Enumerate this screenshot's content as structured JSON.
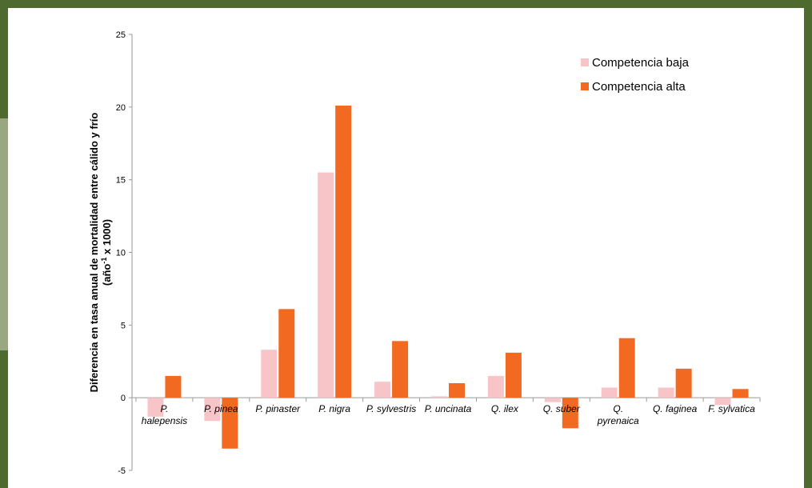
{
  "chart_data": {
    "type": "bar",
    "categories": [
      [
        "P.",
        "halepensis"
      ],
      [
        "P. pinea"
      ],
      [
        "P. pinaster"
      ],
      [
        "P. nigra"
      ],
      [
        "P. sylvestris"
      ],
      [
        "P. uncinata"
      ],
      [
        "Q. ilex"
      ],
      [
        "Q. suber"
      ],
      [
        "Q.",
        "pyrenaica"
      ],
      [
        "Q. faginea"
      ],
      [
        "F. sylvatica"
      ]
    ],
    "series": [
      {
        "name": "Competencia baja",
        "color": "#f7c4c8",
        "values": [
          -1.3,
          -1.6,
          3.3,
          15.5,
          1.1,
          0.1,
          1.5,
          -0.3,
          0.7,
          0.7,
          -0.5
        ]
      },
      {
        "name": "Competencia alta",
        "color": "#f26a21",
        "values": [
          1.5,
          -3.5,
          6.1,
          20.1,
          3.9,
          1.0,
          3.1,
          -2.1,
          4.1,
          2.0,
          0.6
        ]
      }
    ],
    "ylabel_line1": "Diferencia en tasa anual de mortalidad entre cálido y frío",
    "ylabel_line2_prefix": "(año",
    "ylabel_line2_sup": "-1",
    "ylabel_line2_suffix": " x 1000)",
    "ylim": [
      -5,
      25
    ],
    "yticks": [
      -5,
      0,
      5,
      10,
      15,
      20,
      25
    ],
    "grid": false,
    "legend_position": "top-right"
  }
}
